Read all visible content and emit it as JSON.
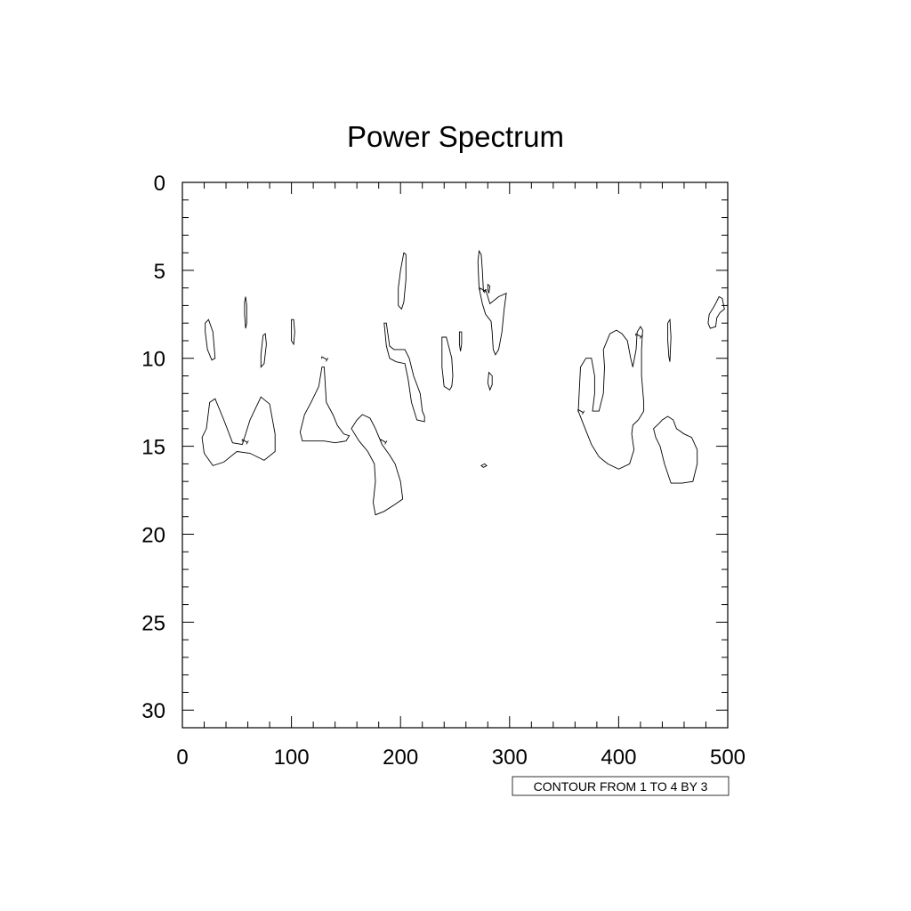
{
  "chart_data": {
    "type": "contour",
    "title": "Power Spectrum",
    "xlabel": "",
    "ylabel": "",
    "xlim": [
      0,
      500
    ],
    "ylim": [
      0,
      31
    ],
    "y_inverted": true,
    "x_ticks": [
      0,
      100,
      200,
      300,
      400,
      500
    ],
    "x_tick_labels": [
      "0",
      "100",
      "200",
      "300",
      "400",
      "500"
    ],
    "y_ticks": [
      0,
      5,
      10,
      15,
      20,
      25,
      30
    ],
    "y_tick_labels": [
      "0",
      "5",
      "10",
      "15",
      "20",
      "25",
      "30"
    ],
    "contour_info": "CONTOUR FROM 1 TO 4 BY 3",
    "contour_levels": [
      1
    ],
    "contours": [
      {
        "level": 1,
        "points": [
          [
            22,
            14
          ],
          [
            25,
            12.5
          ],
          [
            30,
            12.3
          ],
          [
            38,
            13.5
          ],
          [
            46,
            14.8
          ],
          [
            55,
            14.9
          ],
          [
            62,
            13.5
          ],
          [
            72,
            12.2
          ],
          [
            80,
            12.6
          ],
          [
            85,
            14.3
          ],
          [
            85,
            15.3
          ],
          [
            75,
            15.8
          ],
          [
            62,
            15.4
          ],
          [
            50,
            15.3
          ],
          [
            38,
            15.9
          ],
          [
            28,
            16.1
          ],
          [
            20,
            15.4
          ],
          [
            18,
            14.5
          ]
        ]
      },
      {
        "level": 1,
        "points": [
          [
            21,
            8
          ],
          [
            24,
            7.8
          ],
          [
            28,
            8.5
          ],
          [
            30,
            10
          ],
          [
            27,
            10.1
          ],
          [
            23,
            9.5
          ],
          [
            21,
            8.5
          ]
        ]
      },
      {
        "level": 1,
        "points": [
          [
            58,
            6.5
          ],
          [
            59,
            7
          ],
          [
            59,
            8
          ],
          [
            58,
            8.3
          ],
          [
            57,
            7.5
          ],
          [
            57,
            6.8
          ]
        ]
      },
      {
        "level": 1,
        "points": [
          [
            74,
            8.7
          ],
          [
            76,
            8.6
          ],
          [
            77,
            9.2
          ],
          [
            75,
            10.3
          ],
          [
            72,
            10.5
          ],
          [
            72,
            9.8
          ]
        ]
      },
      {
        "level": 1,
        "points": [
          [
            100,
            7.8
          ],
          [
            102,
            7.8
          ],
          [
            103,
            8.5
          ],
          [
            102,
            9.2
          ],
          [
            100,
            9
          ],
          [
            100,
            8.3
          ]
        ]
      },
      {
        "level": 1,
        "points": [
          [
            128,
            10.5
          ],
          [
            130,
            10.5
          ],
          [
            131,
            11.5
          ],
          [
            132,
            12.5
          ],
          [
            138,
            13.2
          ],
          [
            142,
            13.8
          ],
          [
            148,
            14.3
          ],
          [
            153,
            14.4
          ],
          [
            150,
            14.7
          ],
          [
            140,
            14.8
          ],
          [
            130,
            14.7
          ],
          [
            120,
            14.7
          ],
          [
            110,
            14.7
          ],
          [
            108,
            14.2
          ],
          [
            112,
            13.2
          ],
          [
            118,
            12.5
          ],
          [
            125,
            11.6
          ]
        ]
      },
      {
        "level": 1,
        "points": [
          [
            155,
            14
          ],
          [
            160,
            13.5
          ],
          [
            165,
            13.2
          ],
          [
            172,
            13.4
          ],
          [
            177,
            14
          ],
          [
            183,
            14.9
          ],
          [
            190,
            15.5
          ],
          [
            195,
            16
          ],
          [
            200,
            17
          ],
          [
            202,
            18
          ],
          [
            195,
            18.3
          ],
          [
            185,
            18.7
          ],
          [
            177,
            18.9
          ],
          [
            175,
            18.2
          ],
          [
            177,
            17
          ],
          [
            176,
            16
          ],
          [
            170,
            15.3
          ],
          [
            162,
            14.7
          ]
        ]
      },
      {
        "level": 1,
        "points": [
          [
            185,
            8
          ],
          [
            187,
            8
          ],
          [
            190,
            9.3
          ],
          [
            194,
            9.5
          ],
          [
            200,
            9.5
          ],
          [
            204,
            9.5
          ],
          [
            208,
            10
          ],
          [
            212,
            11
          ],
          [
            215,
            11.5
          ],
          [
            218,
            12
          ],
          [
            220,
            13
          ],
          [
            222,
            13.3
          ],
          [
            222,
            13.6
          ],
          [
            215,
            13.5
          ],
          [
            210,
            12.5
          ],
          [
            207,
            11.2
          ],
          [
            204,
            10.3
          ],
          [
            196,
            10.2
          ],
          [
            190,
            10
          ],
          [
            187,
            9.3
          ]
        ]
      },
      {
        "level": 1,
        "points": [
          [
            198,
            6
          ],
          [
            199,
            5.5
          ],
          [
            200,
            5
          ],
          [
            203,
            4
          ],
          [
            205,
            4.1
          ],
          [
            205,
            5.5
          ],
          [
            203,
            6.8
          ],
          [
            201,
            7.2
          ],
          [
            198,
            7
          ]
        ]
      },
      {
        "level": 1,
        "points": [
          [
            238,
            8.8
          ],
          [
            242,
            8.8
          ],
          [
            247,
            10
          ],
          [
            248,
            11
          ],
          [
            247,
            11.6
          ],
          [
            245,
            11.8
          ],
          [
            240,
            11.6
          ],
          [
            238,
            10.5
          ]
        ]
      },
      {
        "level": 1,
        "points": [
          [
            254,
            8.5
          ],
          [
            256,
            8.5
          ],
          [
            256,
            9.2
          ],
          [
            255,
            9.6
          ],
          [
            254,
            9.2
          ]
        ]
      },
      {
        "level": 1,
        "points": [
          [
            271,
            4.5
          ],
          [
            272,
            3.9
          ],
          [
            274,
            4.1
          ],
          [
            275,
            5
          ],
          [
            276,
            6.2
          ],
          [
            278,
            6.1
          ],
          [
            280,
            6.5
          ],
          [
            282,
            6.9
          ],
          [
            290,
            6.5
          ],
          [
            297,
            6.3
          ],
          [
            295,
            7.2
          ],
          [
            293,
            8.5
          ],
          [
            290,
            9.5
          ],
          [
            287,
            9.8
          ],
          [
            285,
            9.5
          ],
          [
            284,
            8.5
          ],
          [
            283,
            7.9
          ],
          [
            278,
            7.5
          ],
          [
            275,
            6.9
          ],
          [
            272,
            6
          ]
        ]
      },
      {
        "level": 1,
        "points": [
          [
            280,
            5.8
          ],
          [
            282,
            5.9
          ],
          [
            281,
            6.3
          ],
          [
            280,
            6.1
          ]
        ]
      },
      {
        "level": 1,
        "points": [
          [
            281,
            10.8
          ],
          [
            284,
            11
          ],
          [
            284,
            11.5
          ],
          [
            282,
            11.8
          ],
          [
            280,
            11.4
          ]
        ]
      },
      {
        "level": 1,
        "points": [
          [
            274,
            16.1
          ],
          [
            277,
            16
          ],
          [
            279,
            16.1
          ],
          [
            276,
            16.2
          ]
        ]
      },
      {
        "level": 1,
        "points": [
          [
            365,
            10.5
          ],
          [
            370,
            10
          ],
          [
            375,
            10
          ],
          [
            378,
            11
          ],
          [
            378,
            12
          ],
          [
            376,
            13
          ],
          [
            382,
            13
          ],
          [
            386,
            12
          ],
          [
            387,
            10.5
          ],
          [
            386,
            9.5
          ],
          [
            392,
            8.6
          ],
          [
            398,
            8.4
          ],
          [
            403,
            8.6
          ],
          [
            408,
            9
          ],
          [
            411,
            10
          ],
          [
            413,
            10.5
          ],
          [
            416,
            9.5
          ],
          [
            417,
            8.5
          ],
          [
            420,
            8.2
          ],
          [
            422,
            8.4
          ],
          [
            421,
            9.5
          ],
          [
            421,
            11
          ],
          [
            423,
            12.5
          ],
          [
            423,
            13
          ],
          [
            418,
            13.5
          ],
          [
            413,
            13.8
          ],
          [
            412,
            14.3
          ],
          [
            414,
            15.2
          ],
          [
            410,
            16
          ],
          [
            400,
            16.3
          ],
          [
            390,
            16
          ],
          [
            382,
            15.6
          ],
          [
            375,
            14.9
          ],
          [
            368,
            13.8
          ],
          [
            363,
            13
          ]
        ]
      },
      {
        "level": 1,
        "points": [
          [
            445,
            8
          ],
          [
            447,
            7.8
          ],
          [
            448,
            8.8
          ],
          [
            447,
            10.2
          ],
          [
            446,
            9.9
          ],
          [
            445,
            9
          ]
        ]
      },
      {
        "level": 1,
        "points": [
          [
            432,
            14
          ],
          [
            437,
            13.7
          ],
          [
            440,
            13.5
          ],
          [
            445,
            13.3
          ],
          [
            450,
            13.5
          ],
          [
            453,
            14
          ],
          [
            460,
            14.3
          ],
          [
            467,
            14.5
          ],
          [
            472,
            15.2
          ],
          [
            472,
            16
          ],
          [
            468,
            17
          ],
          [
            458,
            17.1
          ],
          [
            448,
            17.1
          ],
          [
            442,
            16
          ],
          [
            438,
            15
          ],
          [
            434,
            14.5
          ]
        ]
      },
      {
        "level": 1,
        "points": [
          [
            483,
            7.5
          ],
          [
            488,
            7
          ],
          [
            492,
            6.5
          ],
          [
            495,
            6.6
          ],
          [
            497,
            7.2
          ],
          [
            493,
            7.4
          ],
          [
            490,
            7.7
          ],
          [
            489,
            8.2
          ],
          [
            484,
            8.3
          ],
          [
            482,
            8
          ]
        ]
      }
    ],
    "contour_label_marks": [
      {
        "text": "1",
        "x": 57,
        "y": 14.7
      },
      {
        "text": "1",
        "x": 130,
        "y": 10
      },
      {
        "text": "1",
        "x": 184,
        "y": 14.7
      },
      {
        "text": "1",
        "x": 275,
        "y": 6.1
      },
      {
        "text": "1",
        "x": 418,
        "y": 8.7
      },
      {
        "text": "1",
        "x": 365,
        "y": 13
      }
    ]
  }
}
